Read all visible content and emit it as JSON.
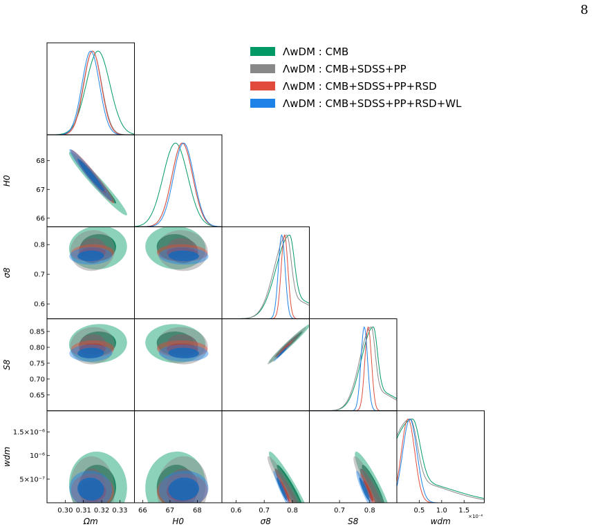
{
  "page_number": "8",
  "colors": {
    "CMB": "#009966",
    "CMB+SDSS+PP": "#888888",
    "CMB+SDSS+PP+RSD": "#e04b3c",
    "CMB+SDSS+PP+RSD+WL": "#1e82e6"
  },
  "legend": [
    {
      "label": "ΛwDM : CMB",
      "color": "#009966"
    },
    {
      "label": "ΛwDM : CMB+SDSS+PP",
      "color": "#888888"
    },
    {
      "label": "ΛwDM : CMB+SDSS+PP+RSD",
      "color": "#e04b3c"
    },
    {
      "label": "ΛwDM : CMB+SDSS+PP+RSD+WL",
      "color": "#1e82e6"
    }
  ],
  "chart_data": {
    "type": "triangle_corner_plot",
    "legend_position": "upper-right",
    "parameters": [
      {
        "name": "Omega_m",
        "label": "Ωm",
        "range": [
          0.29,
          0.338
        ],
        "ticks": [
          {
            "v": 0.3,
            "t": "0.30"
          },
          {
            "v": 0.31,
            "t": "0.31"
          },
          {
            "v": 0.32,
            "t": "0.32"
          },
          {
            "v": 0.33,
            "t": "0.33"
          }
        ]
      },
      {
        "name": "H0",
        "label": "H0",
        "range": [
          65.7,
          68.9
        ],
        "ticks": [
          {
            "v": 66,
            "t": "66"
          },
          {
            "v": 67,
            "t": "67"
          },
          {
            "v": 68,
            "t": "68"
          }
        ]
      },
      {
        "name": "sigma8",
        "label": "σ8",
        "range": [
          0.55,
          0.86
        ],
        "ticks": [
          {
            "v": 0.6,
            "t": "0.6"
          },
          {
            "v": 0.7,
            "t": "0.7"
          },
          {
            "v": 0.8,
            "t": "0.8"
          }
        ]
      },
      {
        "name": "S8",
        "label": "S8",
        "range": [
          0.6,
          0.89
        ],
        "ticks": [
          {
            "v": 0.65,
            "t": "0.65"
          },
          {
            "v": 0.7,
            "t": "0.70"
          },
          {
            "v": 0.75,
            "t": "0.75"
          },
          {
            "v": 0.8,
            "t": "0.80"
          },
          {
            "v": 0.85,
            "t": "0.85"
          }
        ],
        "ticks_x": [
          {
            "v": 0.7,
            "t": "0.7"
          },
          {
            "v": 0.8,
            "t": "0.8"
          }
        ]
      },
      {
        "name": "w_dm",
        "label": "wdm",
        "range": [
          0,
          1.95e-06
        ],
        "ticks": [
          {
            "v": 5e-07,
            "t": "5×10⁻⁷"
          },
          {
            "v": 1e-06,
            "t": "10⁻⁶"
          },
          {
            "v": 1.5e-06,
            "t": "1.5×10⁻⁶"
          }
        ],
        "ticks_x": [
          {
            "v": 5e-07,
            "t": "0.5"
          },
          {
            "v": 1e-06,
            "t": "1.0"
          },
          {
            "v": 1.5e-06,
            "t": "1.5"
          }
        ],
        "x_offset_label": "×10⁻⁶"
      }
    ],
    "series": [
      {
        "name": "ΛwDM : CMB",
        "color": "#009966",
        "mean": [
          0.318,
          67.2,
          0.79,
          0.812,
          3.5e-07
        ],
        "sd": [
          0.0065,
          0.45,
          0.03,
          0.025,
          3e-07
        ],
        "tail": [
          0,
          0,
          1,
          1,
          1
        ]
      },
      {
        "name": "ΛwDM : CMB+SDSS+PP",
        "color": "#888888",
        "mean": [
          0.315,
          67.45,
          0.78,
          0.805,
          3e-07
        ],
        "sd": [
          0.005,
          0.38,
          0.028,
          0.024,
          2.8e-07
        ],
        "tail": [
          0,
          0,
          1,
          1,
          1
        ]
      },
      {
        "name": "ΛwDM : CMB+SDSS+PP+RSD",
        "color": "#e04b3c",
        "mean": [
          0.315,
          67.45,
          0.772,
          0.795,
          2.5e-07
        ],
        "sd": [
          0.0048,
          0.38,
          0.012,
          0.011,
          1.5e-07
        ],
        "tail": [
          0,
          0,
          0,
          0,
          0
        ]
      },
      {
        "name": "ΛwDM : CMB+SDSS+PP+RSD+WL",
        "color": "#1e82e6",
        "mean": [
          0.314,
          67.5,
          0.762,
          0.782,
          2.9e-07
        ],
        "sd": [
          0.0048,
          0.37,
          0.012,
          0.011,
          1.6e-07
        ],
        "tail": [
          0,
          0,
          0,
          0,
          0
        ]
      }
    ],
    "correlations": {
      "0-1": -0.97,
      "0-2": 0.05,
      "0-3": 0.05,
      "0-4": -0.05,
      "1-2": -0.05,
      "1-3": -0.05,
      "1-4": 0.05,
      "2-3": 0.98,
      "2-4": -0.95,
      "3-4": -0.92
    }
  }
}
